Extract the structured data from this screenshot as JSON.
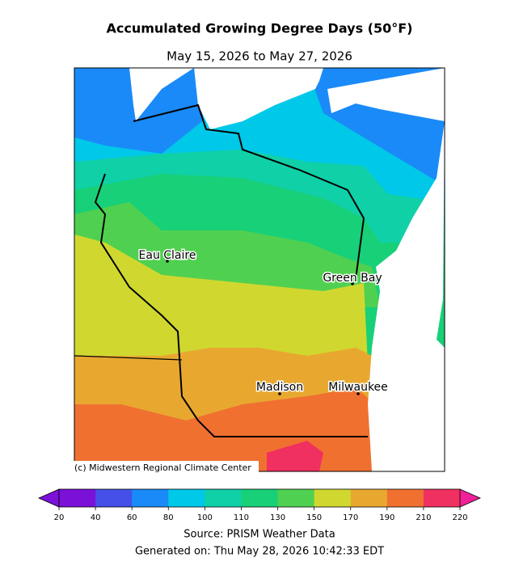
{
  "title": "Accumulated Growing Degree Days (50°F)",
  "subtitle": "May 15, 2026 to May 27, 2026",
  "map": {
    "cities": [
      {
        "label": "Eau Claire"
      },
      {
        "label": "Green Bay"
      },
      {
        "label": "Madison"
      },
      {
        "label": "Milwaukee"
      }
    ],
    "credit": "(c) Midwestern Regional Climate Center"
  },
  "colorbar": {
    "ticks": [
      20,
      40,
      60,
      80,
      100,
      110,
      130,
      150,
      170,
      190,
      210,
      220
    ],
    "colors": [
      "#7b10d8",
      "#4450e8",
      "#1a8af8",
      "#00c8e8",
      "#10d0a8",
      "#18d078",
      "#50d050",
      "#d0d830",
      "#e8a830",
      "#f07030",
      "#f03060"
    ],
    "under_color": "#7b10d8",
    "over_color": "#f0209a"
  },
  "source": "Source: PRISM Weather Data",
  "generated": "Generated on: Thu May 28, 2026 10:42:33 EDT"
}
